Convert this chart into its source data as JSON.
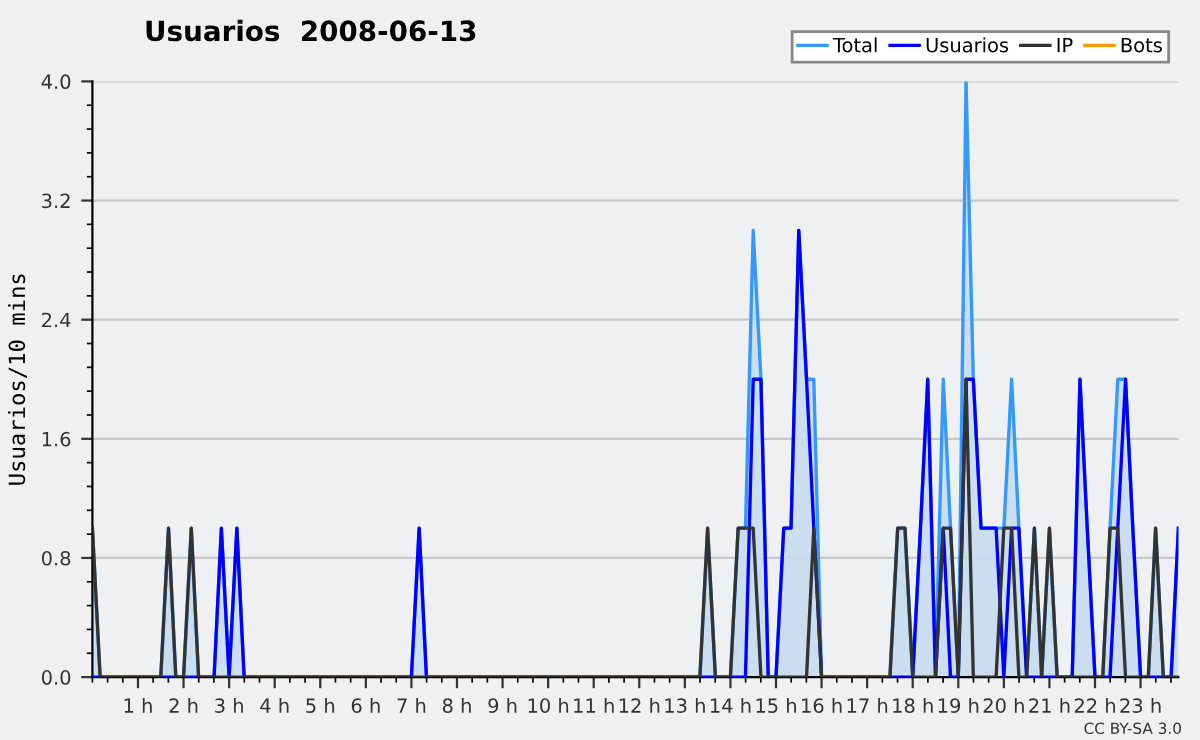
{
  "chart_data": {
    "type": "line",
    "title": "Usuarios  2008-06-13",
    "ylabel": "Usuarios/10 mins",
    "annotations": [
      "CC BY-SA 3.0"
    ],
    "x": [
      0,
      0.17,
      0.33,
      0.5,
      0.67,
      0.83,
      1,
      1.17,
      1.33,
      1.5,
      1.67,
      1.83,
      2,
      2.17,
      2.33,
      2.5,
      2.67,
      2.83,
      3,
      3.17,
      3.33,
      3.5,
      3.67,
      3.83,
      4,
      4.17,
      4.33,
      4.5,
      4.67,
      4.83,
      5,
      5.17,
      5.33,
      5.5,
      5.67,
      5.83,
      6,
      6.17,
      6.33,
      6.5,
      6.67,
      6.83,
      7,
      7.17,
      7.33,
      7.5,
      7.67,
      7.83,
      8,
      8.17,
      8.33,
      8.5,
      8.67,
      8.83,
      9,
      9.17,
      9.33,
      9.5,
      9.67,
      9.83,
      10,
      10.17,
      10.33,
      10.5,
      10.67,
      10.83,
      11,
      11.17,
      11.33,
      11.5,
      11.67,
      11.83,
      12,
      12.17,
      12.33,
      12.5,
      12.67,
      12.83,
      13,
      13.17,
      13.33,
      13.5,
      13.67,
      13.83,
      14,
      14.17,
      14.33,
      14.5,
      14.67,
      14.83,
      15,
      15.17,
      15.33,
      15.5,
      15.67,
      15.83,
      16,
      16.17,
      16.33,
      16.5,
      16.67,
      16.83,
      17,
      17.17,
      17.33,
      17.5,
      17.67,
      17.83,
      18,
      18.17,
      18.33,
      18.5,
      18.67,
      18.83,
      19,
      19.17,
      19.33,
      19.5,
      19.67,
      19.83,
      20,
      20.17,
      20.33,
      20.5,
      20.67,
      20.83,
      21,
      21.17,
      21.33,
      21.5,
      21.67,
      21.83,
      22,
      22.17,
      22.33,
      22.5,
      22.67,
      22.83,
      23,
      23.17,
      23.33,
      23.5,
      23.67,
      23.83
    ],
    "series": [
      {
        "name": "Total",
        "type": "area",
        "color": "#3399ff",
        "values": [
          1,
          0,
          0,
          0,
          0,
          0,
          0,
          0,
          0,
          0,
          1,
          0,
          0,
          1,
          0,
          0,
          0,
          1,
          0,
          1,
          0,
          0,
          0,
          0,
          0,
          0,
          0,
          0,
          0,
          0,
          0,
          0,
          0,
          0,
          0,
          0,
          0,
          0,
          0,
          0,
          0,
          0,
          0,
          1,
          0,
          0,
          0,
          0,
          0,
          0,
          0,
          0,
          0,
          0,
          0,
          0,
          0,
          0,
          0,
          0,
          0,
          0,
          0,
          0,
          0,
          0,
          0,
          0,
          0,
          0,
          0,
          0,
          0,
          0,
          0,
          0,
          0,
          0,
          0,
          0,
          0,
          1,
          0,
          0,
          0,
          1,
          1,
          3,
          2,
          0,
          0,
          1,
          1,
          3,
          2,
          2,
          0,
          0,
          0,
          0,
          0,
          0,
          0,
          0,
          0,
          0,
          1,
          1,
          0,
          1,
          2,
          0,
          2,
          1,
          0,
          4,
          2,
          1,
          1,
          1,
          1,
          2,
          1,
          0,
          1,
          0,
          1,
          0,
          0,
          0,
          2,
          1,
          0,
          0,
          1,
          2,
          2,
          1,
          0,
          0,
          1,
          0,
          0,
          1
        ]
      },
      {
        "name": "Usuarios",
        "color": "#0000ff",
        "values": [
          0,
          0,
          0,
          0,
          0,
          0,
          0,
          0,
          0,
          0,
          0,
          0,
          0,
          0,
          0,
          0,
          0,
          1,
          0,
          1,
          0,
          0,
          0,
          0,
          0,
          0,
          0,
          0,
          0,
          0,
          0,
          0,
          0,
          0,
          0,
          0,
          0,
          0,
          0,
          0,
          0,
          0,
          0,
          1,
          0,
          0,
          0,
          0,
          0,
          0,
          0,
          0,
          0,
          0,
          0,
          0,
          0,
          0,
          0,
          0,
          0,
          0,
          0,
          0,
          0,
          0,
          0,
          0,
          0,
          0,
          0,
          0,
          0,
          0,
          0,
          0,
          0,
          0,
          0,
          0,
          0,
          0,
          0,
          0,
          0,
          0,
          0,
          2,
          2,
          0,
          0,
          1,
          1,
          3,
          2,
          1,
          0,
          0,
          0,
          0,
          0,
          0,
          0,
          0,
          0,
          0,
          0,
          0,
          0,
          1,
          2,
          0,
          1,
          0,
          0,
          2,
          2,
          1,
          1,
          1,
          0,
          1,
          1,
          0,
          0,
          0,
          0,
          0,
          0,
          0,
          2,
          1,
          0,
          0,
          0,
          1,
          2,
          1,
          0,
          0,
          0,
          0,
          0,
          1
        ]
      },
      {
        "name": "IP",
        "color": "#333333",
        "values": [
          1,
          0,
          0,
          0,
          0,
          0,
          0,
          0,
          0,
          0,
          1,
          0,
          0,
          1,
          0,
          0,
          0,
          0,
          0,
          0,
          0,
          0,
          0,
          0,
          0,
          0,
          0,
          0,
          0,
          0,
          0,
          0,
          0,
          0,
          0,
          0,
          0,
          0,
          0,
          0,
          0,
          0,
          0,
          0,
          0,
          0,
          0,
          0,
          0,
          0,
          0,
          0,
          0,
          0,
          0,
          0,
          0,
          0,
          0,
          0,
          0,
          0,
          0,
          0,
          0,
          0,
          0,
          0,
          0,
          0,
          0,
          0,
          0,
          0,
          0,
          0,
          0,
          0,
          0,
          0,
          0,
          1,
          0,
          0,
          0,
          1,
          1,
          1,
          0,
          0,
          0,
          0,
          0,
          0,
          0,
          1,
          0,
          0,
          0,
          0,
          0,
          0,
          0,
          0,
          0,
          0,
          1,
          1,
          0,
          0,
          0,
          0,
          1,
          1,
          0,
          2,
          0,
          0,
          0,
          0,
          1,
          1,
          0,
          0,
          1,
          0,
          1,
          0,
          0,
          0,
          0,
          0,
          0,
          0,
          1,
          1,
          0,
          0,
          0,
          0,
          1,
          0,
          0,
          0
        ]
      },
      {
        "name": "Bots",
        "color": "#ff9900",
        "values": [
          null,
          null,
          null,
          null,
          null,
          null,
          null,
          null,
          null,
          null,
          null,
          null,
          null,
          null,
          null,
          null,
          null,
          null,
          null,
          null,
          null,
          null,
          null,
          null,
          null,
          null,
          null,
          null,
          null,
          null,
          null,
          null,
          null,
          null,
          null,
          null,
          null,
          null,
          null,
          null,
          null,
          null,
          null,
          null,
          null,
          null,
          null,
          null,
          null,
          null,
          null,
          null,
          null,
          null,
          null,
          null,
          null,
          null,
          null,
          null,
          null,
          null,
          null,
          null,
          null,
          null,
          null,
          null,
          null,
          null,
          null,
          null,
          null,
          null,
          null,
          null,
          null,
          null,
          null,
          null,
          null,
          null,
          null,
          null,
          null,
          null,
          null,
          null,
          null,
          null,
          null,
          null,
          null,
          null,
          null,
          null,
          null,
          null,
          null,
          null,
          null,
          null,
          null,
          null,
          null,
          null,
          null,
          null,
          null,
          null,
          null,
          null,
          null,
          null,
          null,
          null,
          null,
          null,
          null,
          null,
          null,
          null,
          null,
          null,
          null,
          null,
          null,
          null,
          null,
          null,
          null,
          null,
          null,
          null,
          null,
          null,
          null,
          null,
          null,
          null,
          null,
          null,
          null,
          null
        ]
      }
    ],
    "xlim": [
      0,
      23.83
    ],
    "xticks": [
      {
        "value": 1,
        "label": "1 h"
      },
      {
        "value": 2,
        "label": "2 h"
      },
      {
        "value": 3,
        "label": "3 h"
      },
      {
        "value": 4,
        "label": "4 h"
      },
      {
        "value": 5,
        "label": "5 h"
      },
      {
        "value": 6,
        "label": "6 h"
      },
      {
        "value": 7,
        "label": "7 h"
      },
      {
        "value": 8,
        "label": "8 h"
      },
      {
        "value": 9,
        "label": "9 h"
      },
      {
        "value": 10,
        "label": "10 h"
      },
      {
        "value": 11,
        "label": "11 h"
      },
      {
        "value": 12,
        "label": "12 h"
      },
      {
        "value": 13,
        "label": "13 h"
      },
      {
        "value": 14,
        "label": "14 h"
      },
      {
        "value": 15,
        "label": "15 h"
      },
      {
        "value": 16,
        "label": "16 h"
      },
      {
        "value": 17,
        "label": "17 h"
      },
      {
        "value": 18,
        "label": "18 h"
      },
      {
        "value": 19,
        "label": "19 h"
      },
      {
        "value": 20,
        "label": "20 h"
      },
      {
        "value": 21,
        "label": "21 h"
      },
      {
        "value": 22,
        "label": "22 h"
      },
      {
        "value": 23,
        "label": "23 h"
      }
    ],
    "ylim": [
      0,
      4
    ],
    "yticks": [
      {
        "value": 0,
        "label": "0.0"
      },
      {
        "value": 0.8,
        "label": "0.8"
      },
      {
        "value": 1.6,
        "label": "1.6"
      },
      {
        "value": 2.4,
        "label": "2.4"
      },
      {
        "value": 3.2,
        "label": "3.2"
      },
      {
        "value": 4,
        "label": "4.0"
      }
    ],
    "grid": "y",
    "legend": "top right",
    "marker": "none",
    "line_style": "solid"
  }
}
